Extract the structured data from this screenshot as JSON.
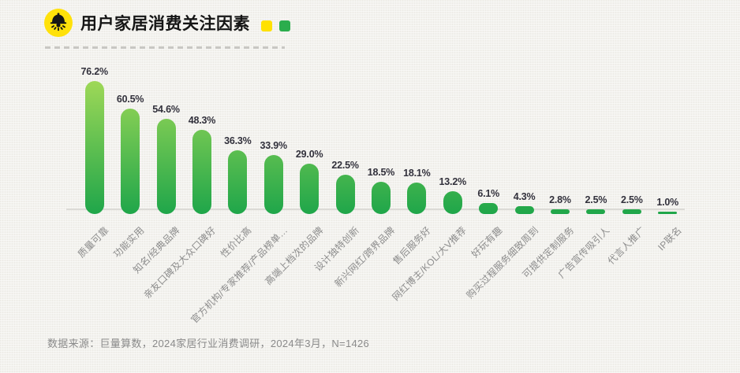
{
  "header": {
    "title": "用户家居消费关注因素",
    "logo_icon": "pendant-lamp-icon",
    "logo_bg_color": "#FFE10A",
    "logo_fg_color": "#161616",
    "accent_squares": [
      "#FFE100",
      "#2BAD4D"
    ]
  },
  "chart_data": {
    "type": "bar",
    "title": "用户家居消费关注因素",
    "categories": [
      "质量可靠",
      "功能实用",
      "知名/经典品牌",
      "亲友口碑及大众口碑好",
      "性价比高",
      "官方机构/专家推荐/产品榜单…",
      "高端上档次的品牌",
      "设计独特创新",
      "新兴网红/跨界品牌",
      "售后服务好",
      "网红博主/KOL/大V推荐",
      "好玩有趣",
      "购买过程服务细致周到",
      "可提供定制服务",
      "广告宣传吸引人",
      "代言人推广",
      "IP联名"
    ],
    "values": [
      76.2,
      60.5,
      54.6,
      48.3,
      36.3,
      33.9,
      29.0,
      22.5,
      18.5,
      18.1,
      13.2,
      6.1,
      4.3,
      2.8,
      2.5,
      2.5,
      1.0
    ],
    "unit": "%",
    "ylim": [
      0,
      80
    ],
    "grid": false,
    "value_labels": true,
    "label_rotation_deg": 45,
    "bar_gradient_top": "#9ED857",
    "bar_gradient_bottom": "#1FA64A",
    "baseline_color": "#DCDBD7"
  },
  "footer": {
    "source_text": "数据来源：巨量算数，2024家居行业消费调研，2024年3月，N=1426"
  }
}
